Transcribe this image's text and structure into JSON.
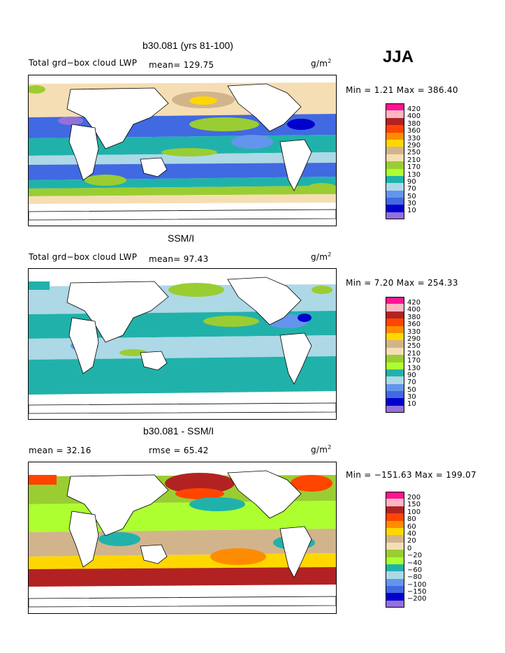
{
  "season": "JJA",
  "panels": [
    {
      "title": "b30.081 (yrs 81-100)",
      "left_label": "Total grd−box cloud LWP",
      "mean_text": "mean=  129.75",
      "right_label": "g/m",
      "right_label_sup": "2",
      "minmax": "Min =    1.21 Max =  386.40",
      "legend_labels": [
        "420",
        "400",
        "380",
        "360",
        "330",
        "290",
        "250",
        "210",
        "170",
        "130",
        "90",
        "70",
        "50",
        "30",
        "10"
      ],
      "legend_colors": [
        "#ff1493",
        "#ffb6c1",
        "#b22222",
        "#ff4500",
        "#ff8c00",
        "#ffd700",
        "#d2b48c",
        "#f5deb3",
        "#9acd32",
        "#adff2f",
        "#20b2aa",
        "#add8e6",
        "#6495ed",
        "#4169e1",
        "#0000cd",
        "#9370db"
      ]
    },
    {
      "title": "SSM/I",
      "left_label": "Total grd−box cloud LWP",
      "mean_text": "mean=   97.43",
      "right_label": "g/m",
      "right_label_sup": "2",
      "minmax": "Min =    7.20 Max =  254.33",
      "legend_labels": [
        "420",
        "400",
        "380",
        "360",
        "330",
        "290",
        "250",
        "210",
        "170",
        "130",
        "90",
        "70",
        "50",
        "30",
        "10"
      ],
      "legend_colors": [
        "#ff1493",
        "#ffb6c1",
        "#b22222",
        "#ff4500",
        "#ff8c00",
        "#ffd700",
        "#d2b48c",
        "#f5deb3",
        "#9acd32",
        "#adff2f",
        "#20b2aa",
        "#add8e6",
        "#6495ed",
        "#4169e1",
        "#0000cd",
        "#9370db"
      ]
    },
    {
      "title": "b30.081 - SSM/I",
      "left_label": "mean =    32.16",
      "mean_text": "rmse =   65.42",
      "right_label": "g/m",
      "right_label_sup": "2",
      "minmax": "Min = −151.63 Max =  199.07",
      "legend_labels": [
        "200",
        "150",
        "100",
        "80",
        "60",
        "40",
        "20",
        "0",
        "−20",
        "−40",
        "−60",
        "−80",
        "−100",
        "−150",
        "−200"
      ],
      "legend_colors": [
        "#ff1493",
        "#ffb6c1",
        "#b22222",
        "#ff4500",
        "#ff8c00",
        "#ffd700",
        "#d2b48c",
        "#f5deb3",
        "#9acd32",
        "#adff2f",
        "#20b2aa",
        "#add8e6",
        "#6495ed",
        "#4169e1",
        "#0000cd",
        "#9370db"
      ]
    }
  ]
}
